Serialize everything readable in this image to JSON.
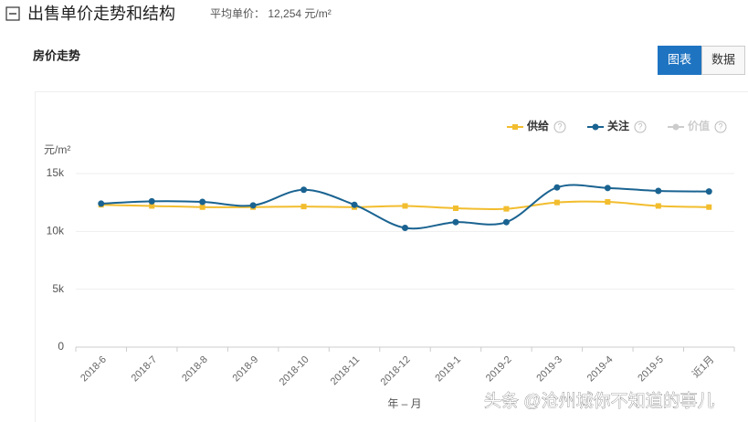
{
  "header": {
    "title": "出售单价走势和结构",
    "average": "平均单价： 12,254 元/m²"
  },
  "section_title": "房价走势",
  "tabs": [
    "图表",
    "数据"
  ],
  "watermark": "头条 @沧州城你不知道的事儿",
  "chart_data": {
    "type": "line",
    "y_label": "元/m²",
    "x_label": "年 – 月",
    "categories": [
      "2018-6",
      "2018-7",
      "2018-8",
      "2018-9",
      "2018-10",
      "2018-11",
      "2018-12",
      "2019-1",
      "2019-2",
      "2019-3",
      "2019-4",
      "2019-5",
      "近1月"
    ],
    "series": [
      {
        "name": "供给",
        "color": "#f2bd2e",
        "values": [
          12300,
          12200,
          12100,
          12100,
          12150,
          12100,
          12200,
          12000,
          11950,
          12500,
          12550,
          12200,
          12100
        ]
      },
      {
        "name": "关注",
        "color": "#1a6391",
        "values": [
          12400,
          12600,
          12550,
          12250,
          13600,
          12300,
          10300,
          10800,
          10800,
          13800,
          13750,
          13500,
          13450
        ]
      }
    ],
    "disabled_series": [
      {
        "name": "价值",
        "color": "#cccccc"
      }
    ],
    "ylim": [
      0,
      15000
    ],
    "yticks": [
      {
        "value": 0,
        "label": "0"
      },
      {
        "value": 5000,
        "label": "5k"
      },
      {
        "value": 10000,
        "label": "10k"
      },
      {
        "value": 15000,
        "label": "15k"
      }
    ],
    "grid": true
  }
}
